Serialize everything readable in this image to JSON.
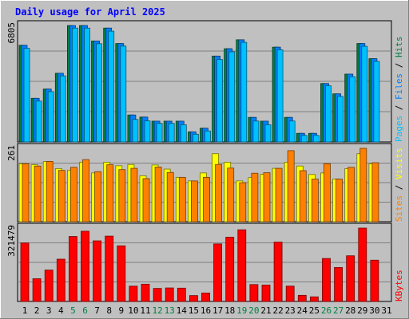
{
  "chart_data": [
    {
      "type": "bar",
      "title": "Daily usage for April 2025",
      "panel": "pages-files-hits",
      "ymax_label": "6805",
      "categories": [
        "1",
        "2",
        "3",
        "4",
        "5",
        "6",
        "7",
        "8",
        "9",
        "10",
        "11",
        "12",
        "13",
        "14",
        "15",
        "16",
        "17",
        "18",
        "19",
        "20",
        "21",
        "22",
        "23",
        "24",
        "25",
        "26",
        "27",
        "28",
        "29",
        "30",
        "31"
      ],
      "series": [
        {
          "name": "Hits",
          "color": "#008040",
          "values": [
            5630,
            2540,
            3080,
            4000,
            6780,
            6780,
            5880,
            6630,
            5730,
            1570,
            1450,
            1210,
            1210,
            1210,
            590,
            800,
            5000,
            5430,
            5950,
            1430,
            1210,
            5520,
            1430,
            500,
            500,
            3400,
            2800,
            3950,
            5730,
            4850,
            0
          ]
        },
        {
          "name": "Files",
          "color": "#0080ff",
          "values": [
            5630,
            2540,
            3080,
            4000,
            6780,
            6780,
            5880,
            6630,
            5730,
            1570,
            1450,
            1210,
            1210,
            1210,
            590,
            800,
            5000,
            5430,
            5950,
            1430,
            1210,
            5520,
            1430,
            500,
            500,
            3400,
            2800,
            3950,
            5730,
            4850,
            0
          ]
        },
        {
          "name": "Pages",
          "color": "#00c0ff",
          "values": [
            5450,
            2380,
            2930,
            3850,
            6630,
            6630,
            5720,
            6450,
            5580,
            1310,
            1230,
            1080,
            1080,
            1000,
            450,
            640,
            4800,
            5250,
            5800,
            1220,
            1000,
            5360,
            1220,
            380,
            380,
            3270,
            2650,
            3800,
            5570,
            4690,
            0
          ]
        }
      ],
      "legend": [
        "Pages",
        "Files",
        "Hits"
      ],
      "separators": [
        "/",
        "/"
      ],
      "colors": {
        "pages": "#00c0ff",
        "files": "#0080ff",
        "hits": "#008040"
      }
    },
    {
      "type": "bar",
      "panel": "sites-visits",
      "ymax_label": "261",
      "categories": [
        "1",
        "2",
        "3",
        "4",
        "5",
        "6",
        "7",
        "8",
        "9",
        "10",
        "11",
        "12",
        "13",
        "14",
        "15",
        "16",
        "17",
        "18",
        "19",
        "20",
        "21",
        "22",
        "23",
        "24",
        "25",
        "26",
        "27",
        "28",
        "29",
        "30",
        "31"
      ],
      "series": [
        {
          "name": "Visits",
          "color": "#ffff00",
          "values": [
            226,
            222,
            235,
            207,
            201,
            232,
            190,
            232,
            218,
            223,
            179,
            221,
            205,
            173,
            159,
            190,
            265,
            232,
            159,
            172,
            185,
            208,
            232,
            217,
            184,
            190,
            166,
            207,
            265,
            226,
            0
          ]
        },
        {
          "name": "Sites",
          "color": "#ff8000",
          "values": [
            226,
            217,
            235,
            200,
            212,
            242,
            195,
            222,
            203,
            208,
            168,
            213,
            192,
            173,
            159,
            173,
            223,
            209,
            152,
            189,
            191,
            208,
            277,
            199,
            166,
            226,
            166,
            212,
            286,
            230,
            0
          ]
        }
      ],
      "legend": [
        "Sites",
        "Visits"
      ],
      "separators": [
        "/"
      ],
      "colors": {
        "sites": "#ff8000",
        "visits": "#ffff00"
      }
    },
    {
      "type": "bar",
      "panel": "kbytes",
      "ymax_label": "321479",
      "categories": [
        "1",
        "2",
        "3",
        "4",
        "5",
        "6",
        "7",
        "8",
        "9",
        "10",
        "11",
        "12",
        "13",
        "14",
        "15",
        "16",
        "17",
        "18",
        "19",
        "20",
        "21",
        "22",
        "23",
        "24",
        "25",
        "26",
        "27",
        "28",
        "29",
        "30",
        "31"
      ],
      "weekend_days": [
        5,
        6,
        12,
        13,
        19,
        20,
        26,
        27
      ],
      "series": [
        {
          "name": "KBytes",
          "color": "#ff0000",
          "values": [
            301400,
            117200,
            161800,
            218000,
            334900,
            362100,
            312400,
            336800,
            286900,
            78900,
            89000,
            67200,
            69700,
            68700,
            30300,
            43600,
            296600,
            331600,
            369600,
            87000,
            84800,
            305900,
            79000,
            31600,
            23800,
            221500,
            175000,
            235500,
            378300,
            212800,
            0
          ]
        }
      ],
      "legend": [
        "KBytes"
      ],
      "separators": [],
      "colors": {
        "kbytes": "#ff0000"
      }
    }
  ]
}
